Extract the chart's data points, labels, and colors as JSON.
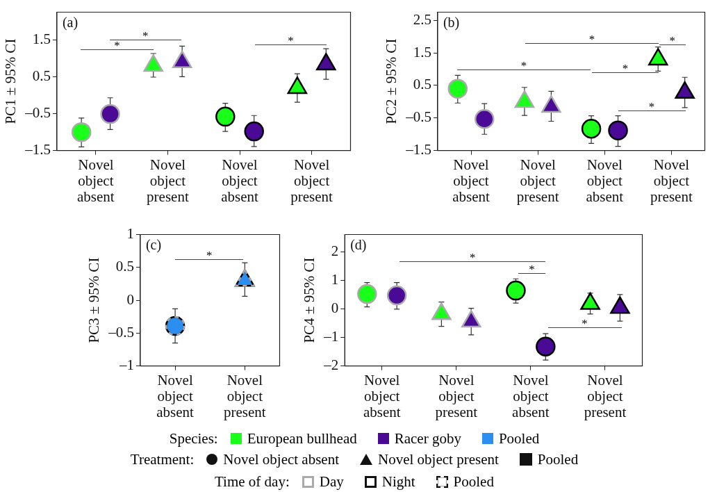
{
  "chart_data": [
    {
      "type": "scatter",
      "title": "(a)",
      "ylabel": "PC1 ± 95% CI",
      "categories": [
        "Novel object absent",
        "Novel object present",
        "Novel object absent",
        "Novel object present"
      ],
      "ylim": [
        -1.5,
        2.25
      ],
      "yticks": [
        {
          "value": -1.5,
          "label": "–1.5"
        },
        {
          "value": -0.5,
          "label": "–0.5"
        },
        0.5,
        1.5
      ],
      "grid": false,
      "series": [
        {
          "color": "#1aff1a",
          "marker": "circle",
          "values": [
            -1.0,
            null,
            -0.58,
            null
          ],
          "errors": [
            [
              -1.4,
              -0.62
            ],
            null,
            [
              -0.98,
              -0.22
            ],
            null
          ]
        },
        {
          "color": "#4b0a96",
          "marker": "circle",
          "values": [
            -0.51,
            null,
            -0.98,
            null
          ],
          "errors": [
            [
              -0.93,
              -0.07
            ],
            null,
            [
              -1.39,
              -0.55
            ],
            null
          ]
        },
        {
          "color": "#1aff1a",
          "marker": "triangle",
          "values": [
            null,
            0.8,
            null,
            0.2
          ],
          "errors": [
            null,
            [
              0.49,
              1.13
            ],
            null,
            [
              -0.19,
              0.58
            ]
          ]
        },
        {
          "color": "#4b0a96",
          "marker": "triangle",
          "values": [
            null,
            0.9,
            null,
            0.84
          ],
          "errors": [
            null,
            [
              0.5,
              1.33
            ],
            null,
            [
              0.43,
              1.26
            ]
          ]
        }
      ],
      "annotations": [
        "*",
        "*",
        "*"
      ]
    },
    {
      "type": "scatter",
      "title": "(b)",
      "ylabel": "PC2 ± 95% CI",
      "categories": [
        "Novel object absent",
        "Novel object present",
        "Novel object absent",
        "Novel object present"
      ],
      "ylim": [
        -1.5,
        2.75
      ],
      "yticks": [
        {
          "value": -1.5,
          "label": "–1.5"
        },
        {
          "value": -0.5,
          "label": "–0.5"
        },
        0.5,
        1.5,
        2.5
      ],
      "grid": false,
      "series": [
        {
          "color": "#1aff1a",
          "marker": "circle",
          "values": [
            0.4,
            null,
            -0.83,
            null
          ],
          "errors": [
            [
              -0.04,
              0.81
            ],
            null,
            [
              -1.28,
              -0.43
            ],
            null
          ]
        },
        {
          "color": "#4b0a96",
          "marker": "circle",
          "values": [
            -0.53,
            null,
            -0.88,
            null
          ],
          "errors": [
            [
              -1.0,
              -0.06
            ],
            null,
            [
              -1.37,
              -0.43
            ],
            null
          ]
        },
        {
          "color": "#1aff1a",
          "marker": "triangle",
          "values": [
            null,
            0.0,
            null,
            1.3
          ],
          "errors": [
            null,
            [
              -0.42,
              0.44
            ],
            null,
            [
              0.94,
              1.68
            ]
          ]
        },
        {
          "color": "#4b0a96",
          "marker": "triangle",
          "values": [
            null,
            -0.15,
            null,
            0.28
          ],
          "errors": [
            null,
            [
              -0.6,
              0.32
            ],
            null,
            [
              -0.18,
              0.75
            ]
          ]
        }
      ],
      "annotations": [
        "*",
        "*",
        "*",
        "*",
        "*"
      ]
    },
    {
      "type": "scatter",
      "title": "(c)",
      "ylabel": "PC3 ± 95% CI",
      "categories": [
        "Novel object absent",
        "Novel object present"
      ],
      "ylim": [
        -1,
        1
      ],
      "yticks": [
        {
          "value": -1,
          "label": "–1"
        },
        {
          "value": -0.5,
          "label": "–0.5"
        },
        0,
        0.5,
        1
      ],
      "grid": false,
      "series": [
        {
          "color": "#2b8ef0",
          "marker": "circle",
          "values": [
            -0.39,
            null
          ],
          "errors": [
            [
              -0.65,
              -0.13
            ],
            null
          ]
        },
        {
          "color": "#2b8ef0",
          "marker": "triangle",
          "values": [
            null,
            0.3
          ],
          "errors": [
            null,
            [
              0.06,
              0.57
            ]
          ]
        }
      ],
      "annotations": [
        "*"
      ]
    },
    {
      "type": "scatter",
      "title": "(d)",
      "ylabel": "PC4 ± 95% CI",
      "categories": [
        "Novel object absent",
        "Novel object present",
        "Novel object absent",
        "Novel object present"
      ],
      "ylim": [
        -2,
        2.6
      ],
      "yticks": [
        {
          "value": -2,
          "label": "–2"
        },
        {
          "value": -1,
          "label": "–1"
        },
        0,
        1,
        2
      ],
      "grid": false,
      "series": [
        {
          "color": "#1aff1a",
          "marker": "circle",
          "values": [
            0.52,
            null,
            0.64,
            null
          ],
          "errors": [
            [
              0.07,
              0.92
            ],
            null,
            [
              0.2,
              1.05
            ],
            null
          ]
        },
        {
          "color": "#4b0a96",
          "marker": "circle",
          "values": [
            0.47,
            null,
            -1.32,
            null
          ],
          "errors": [
            [
              -0.01,
              0.92
            ],
            null,
            [
              -1.79,
              -0.87
            ],
            null
          ]
        },
        {
          "color": "#1aff1a",
          "marker": "triangle",
          "values": [
            null,
            -0.18,
            null,
            0.18
          ],
          "errors": [
            null,
            [
              -0.61,
              0.24
            ],
            null,
            [
              -0.18,
              0.55
            ]
          ]
        },
        {
          "color": "#4b0a96",
          "marker": "triangle",
          "values": [
            null,
            -0.44,
            null,
            0.04
          ],
          "errors": [
            null,
            [
              -0.91,
              0.02
            ],
            null,
            [
              -0.43,
              0.5
            ]
          ]
        }
      ],
      "annotations": [
        "*",
        "*",
        "*"
      ]
    },
    {
      "type": "other",
      "legend_title": "Species:",
      "annotations": [
        "European bullhead",
        "Racer goby",
        "Pooled"
      ],
      "colors": [
        "#1aff1a",
        "#4b0a96",
        "#2b8ef0"
      ]
    },
    {
      "type": "other",
      "legend_title": "Treatment:",
      "annotations": [
        "Novel object absent",
        "Novel object present",
        "Pooled"
      ]
    },
    {
      "type": "other",
      "legend_title": "Time of day:",
      "annotations": [
        "Day",
        "Night",
        "Pooled"
      ]
    }
  ]
}
